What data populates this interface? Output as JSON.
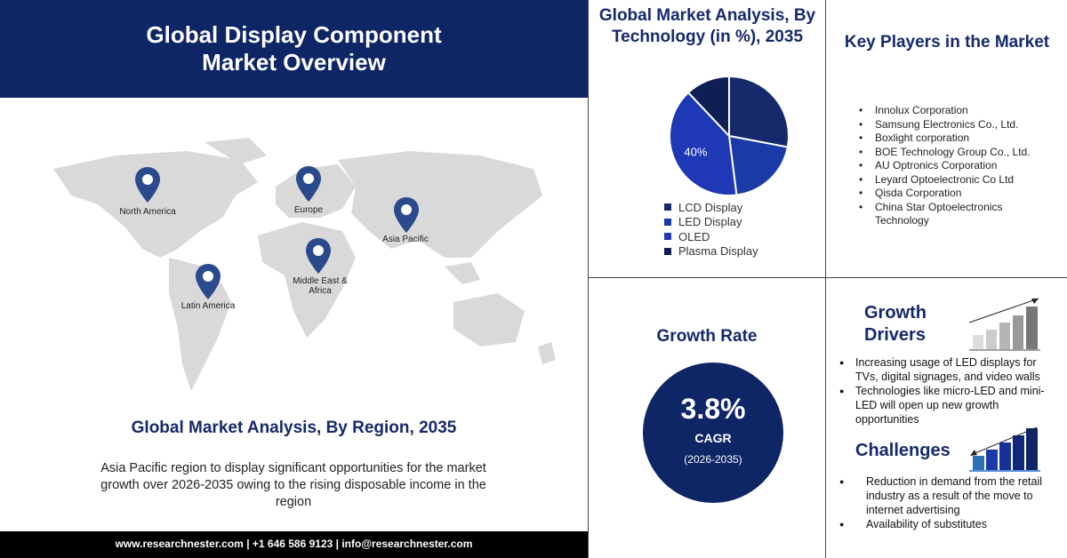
{
  "header": {
    "title": "Global Display Component Market Overview"
  },
  "map": {
    "regions": [
      {
        "label": "North America"
      },
      {
        "label": "Europe"
      },
      {
        "label": "Asia Pacific"
      },
      {
        "label": "Middle East & Africa"
      },
      {
        "label": "Latin America"
      }
    ],
    "pin_color": "#2a4a8c"
  },
  "region": {
    "title": "Global Market Analysis, By Region, 2035",
    "text": "Asia Pacific region to display significant opportunities for the market growth over 2026-2035 owing to the rising disposable income in the region"
  },
  "footer": {
    "text": "www.researchnester.com | +1 646 586 9123 | info@researchnester.com"
  },
  "technology": {
    "title": "Global Market Analysis, By Technology (in %), 2035"
  },
  "chart_data": {
    "type": "pie",
    "title": "Global Market Analysis, By Technology (in %), 2035",
    "categories": [
      "LCD Display",
      "LED Display",
      "OLED",
      "Plasma Display"
    ],
    "values": [
      28,
      20,
      40,
      12
    ],
    "colors": [
      "#16296b",
      "#1a3aa8",
      "#1f38b5",
      "#0f1f55"
    ],
    "data_labels": [
      "",
      "",
      "40%",
      ""
    ],
    "legend": "bottom"
  },
  "key_players": {
    "title": "Key Players in the Market",
    "items": [
      "Innolux Corporation",
      "Samsung Electronics Co., Ltd.",
      "Boxlight corporation",
      "BOE Technology Group Co., Ltd.",
      "AU Optronics Corporation",
      "Leyard Optoelectronic Co Ltd",
      "Qisda Corporation",
      "China Star Optoelectronics Technology"
    ]
  },
  "growth": {
    "title": "Growth Rate",
    "value": "3.8%",
    "label": "CAGR",
    "period": "(2026-2035)"
  },
  "drivers": {
    "title": "Growth Drivers",
    "items": [
      "Increasing usage of LED displays for TVs, digital signages, and video walls",
      "Technologies like micro-LED and mini-LED will open up new growth opportunities"
    ]
  },
  "challenges": {
    "title": "Challenges",
    "items": [
      "Reduction in demand from the retail industry as a result of the move to internet advertising",
      "Availability of substitutes"
    ]
  }
}
